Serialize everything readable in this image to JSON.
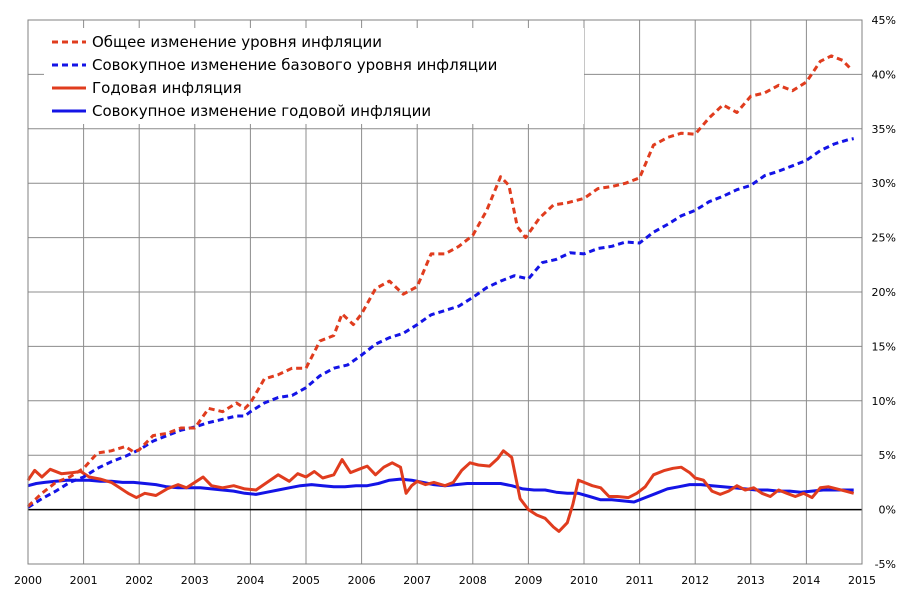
{
  "chart_data": {
    "type": "line",
    "title": "",
    "xlabel": "",
    "ylabel": "",
    "xlim": [
      2000,
      2015
    ],
    "ylim": [
      -5,
      45
    ],
    "grid": true,
    "legend_position": "top-left",
    "x_ticks": [
      "2000",
      "2001",
      "2002",
      "2003",
      "2004",
      "2005",
      "2006",
      "2007",
      "2008",
      "2009",
      "2010",
      "2011",
      "2012",
      "2013",
      "2014",
      "2015"
    ],
    "y_ticks": [
      "-5%",
      "0%",
      "5%",
      "10%",
      "15%",
      "20%",
      "25%",
      "30%",
      "35%",
      "40%",
      "45%"
    ],
    "series": [
      {
        "name": "Общее изменение уровня инфляции",
        "color": "#e03c1e",
        "style": "dashed",
        "points": [
          [
            2000.0,
            0.3
          ],
          [
            2000.25,
            1.5
          ],
          [
            2000.5,
            2.5
          ],
          [
            2000.75,
            3.0
          ],
          [
            2001.0,
            3.8
          ],
          [
            2001.25,
            5.2
          ],
          [
            2001.5,
            5.4
          ],
          [
            2001.75,
            5.8
          ],
          [
            2001.9,
            5.3
          ],
          [
            2002.0,
            5.5
          ],
          [
            2002.25,
            6.8
          ],
          [
            2002.5,
            7.0
          ],
          [
            2002.75,
            7.5
          ],
          [
            2003.0,
            7.5
          ],
          [
            2003.25,
            9.3
          ],
          [
            2003.5,
            9.0
          ],
          [
            2003.75,
            9.8
          ],
          [
            2003.9,
            9.3
          ],
          [
            2004.0,
            9.8
          ],
          [
            2004.25,
            12.0
          ],
          [
            2004.5,
            12.4
          ],
          [
            2004.75,
            13.0
          ],
          [
            2005.0,
            13.0
          ],
          [
            2005.25,
            15.5
          ],
          [
            2005.5,
            16.0
          ],
          [
            2005.65,
            18.0
          ],
          [
            2005.85,
            17.0
          ],
          [
            2006.0,
            18.0
          ],
          [
            2006.25,
            20.3
          ],
          [
            2006.5,
            21.0
          ],
          [
            2006.75,
            19.8
          ],
          [
            2007.0,
            20.5
          ],
          [
            2007.25,
            23.5
          ],
          [
            2007.5,
            23.5
          ],
          [
            2007.75,
            24.2
          ],
          [
            2008.0,
            25.2
          ],
          [
            2008.25,
            27.5
          ],
          [
            2008.5,
            30.6
          ],
          [
            2008.65,
            29.8
          ],
          [
            2008.8,
            26.0
          ],
          [
            2008.95,
            25.0
          ],
          [
            2009.2,
            26.8
          ],
          [
            2009.45,
            28.0
          ],
          [
            2009.7,
            28.2
          ],
          [
            2010.0,
            28.6
          ],
          [
            2010.25,
            29.5
          ],
          [
            2010.5,
            29.7
          ],
          [
            2010.75,
            30.0
          ],
          [
            2011.0,
            30.5
          ],
          [
            2011.25,
            33.5
          ],
          [
            2011.5,
            34.2
          ],
          [
            2011.75,
            34.6
          ],
          [
            2012.0,
            34.5
          ],
          [
            2012.25,
            36.0
          ],
          [
            2012.5,
            37.2
          ],
          [
            2012.75,
            36.5
          ],
          [
            2013.0,
            38.0
          ],
          [
            2013.25,
            38.3
          ],
          [
            2013.5,
            39.0
          ],
          [
            2013.75,
            38.5
          ],
          [
            2014.0,
            39.3
          ],
          [
            2014.25,
            41.2
          ],
          [
            2014.45,
            41.7
          ],
          [
            2014.65,
            41.3
          ],
          [
            2014.8,
            40.5
          ]
        ]
      },
      {
        "name": "Совокупное изменение базового уровня инфляции",
        "color": "#1414e6",
        "style": "dashed",
        "points": [
          [
            2000.0,
            0.2
          ],
          [
            2000.25,
            1.0
          ],
          [
            2000.5,
            1.7
          ],
          [
            2000.75,
            2.5
          ],
          [
            2001.0,
            3.0
          ],
          [
            2001.25,
            3.8
          ],
          [
            2001.5,
            4.4
          ],
          [
            2001.75,
            4.9
          ],
          [
            2002.0,
            5.5
          ],
          [
            2002.25,
            6.3
          ],
          [
            2002.5,
            6.8
          ],
          [
            2002.75,
            7.3
          ],
          [
            2003.0,
            7.6
          ],
          [
            2003.25,
            8.0
          ],
          [
            2003.5,
            8.3
          ],
          [
            2003.75,
            8.6
          ],
          [
            2003.9,
            8.6
          ],
          [
            2004.0,
            9.0
          ],
          [
            2004.25,
            9.8
          ],
          [
            2004.5,
            10.3
          ],
          [
            2004.75,
            10.5
          ],
          [
            2005.0,
            11.2
          ],
          [
            2005.25,
            12.3
          ],
          [
            2005.5,
            13.0
          ],
          [
            2005.75,
            13.3
          ],
          [
            2006.0,
            14.2
          ],
          [
            2006.25,
            15.2
          ],
          [
            2006.5,
            15.8
          ],
          [
            2006.75,
            16.2
          ],
          [
            2007.0,
            17.0
          ],
          [
            2007.25,
            17.9
          ],
          [
            2007.5,
            18.3
          ],
          [
            2007.75,
            18.7
          ],
          [
            2008.0,
            19.5
          ],
          [
            2008.25,
            20.4
          ],
          [
            2008.5,
            21.0
          ],
          [
            2008.75,
            21.5
          ],
          [
            2009.0,
            21.2
          ],
          [
            2009.25,
            22.7
          ],
          [
            2009.5,
            23.0
          ],
          [
            2009.75,
            23.6
          ],
          [
            2010.0,
            23.5
          ],
          [
            2010.25,
            24.0
          ],
          [
            2010.5,
            24.2
          ],
          [
            2010.75,
            24.6
          ],
          [
            2011.0,
            24.5
          ],
          [
            2011.25,
            25.5
          ],
          [
            2011.5,
            26.2
          ],
          [
            2011.75,
            27.0
          ],
          [
            2012.0,
            27.5
          ],
          [
            2012.25,
            28.3
          ],
          [
            2012.5,
            28.8
          ],
          [
            2012.75,
            29.4
          ],
          [
            2013.0,
            29.8
          ],
          [
            2013.25,
            30.7
          ],
          [
            2013.5,
            31.1
          ],
          [
            2013.75,
            31.6
          ],
          [
            2014.0,
            32.1
          ],
          [
            2014.25,
            33.0
          ],
          [
            2014.5,
            33.6
          ],
          [
            2014.75,
            34.0
          ],
          [
            2014.85,
            34.1
          ]
        ]
      },
      {
        "name": "Годовая инфляция",
        "color": "#e03c1e",
        "style": "solid",
        "points": [
          [
            2000.0,
            2.7
          ],
          [
            2000.12,
            3.6
          ],
          [
            2000.25,
            3.0
          ],
          [
            2000.4,
            3.7
          ],
          [
            2000.6,
            3.3
          ],
          [
            2000.8,
            3.4
          ],
          [
            2000.95,
            3.5
          ],
          [
            2001.1,
            3.0
          ],
          [
            2001.3,
            2.8
          ],
          [
            2001.5,
            2.5
          ],
          [
            2001.65,
            2.0
          ],
          [
            2001.8,
            1.5
          ],
          [
            2001.95,
            1.1
          ],
          [
            2002.1,
            1.5
          ],
          [
            2002.3,
            1.3
          ],
          [
            2002.5,
            1.9
          ],
          [
            2002.7,
            2.3
          ],
          [
            2002.85,
            2.0
          ],
          [
            2003.0,
            2.5
          ],
          [
            2003.15,
            3.0
          ],
          [
            2003.3,
            2.2
          ],
          [
            2003.5,
            2.0
          ],
          [
            2003.7,
            2.2
          ],
          [
            2003.9,
            1.9
          ],
          [
            2004.1,
            1.8
          ],
          [
            2004.3,
            2.5
          ],
          [
            2004.5,
            3.2
          ],
          [
            2004.7,
            2.6
          ],
          [
            2004.85,
            3.3
          ],
          [
            2005.0,
            3.0
          ],
          [
            2005.15,
            3.5
          ],
          [
            2005.3,
            2.9
          ],
          [
            2005.5,
            3.2
          ],
          [
            2005.65,
            4.6
          ],
          [
            2005.8,
            3.4
          ],
          [
            2005.95,
            3.7
          ],
          [
            2006.1,
            4.0
          ],
          [
            2006.25,
            3.2
          ],
          [
            2006.4,
            3.9
          ],
          [
            2006.55,
            4.3
          ],
          [
            2006.7,
            3.9
          ],
          [
            2006.8,
            1.5
          ],
          [
            2006.9,
            2.2
          ],
          [
            2007.0,
            2.6
          ],
          [
            2007.15,
            2.3
          ],
          [
            2007.3,
            2.5
          ],
          [
            2007.5,
            2.2
          ],
          [
            2007.65,
            2.5
          ],
          [
            2007.8,
            3.6
          ],
          [
            2007.95,
            4.3
          ],
          [
            2008.1,
            4.1
          ],
          [
            2008.3,
            4.0
          ],
          [
            2008.45,
            4.7
          ],
          [
            2008.55,
            5.4
          ],
          [
            2008.7,
            4.8
          ],
          [
            2008.85,
            1.0
          ],
          [
            2009.0,
            0.0
          ],
          [
            2009.15,
            -0.5
          ],
          [
            2009.3,
            -0.8
          ],
          [
            2009.45,
            -1.6
          ],
          [
            2009.55,
            -2.0
          ],
          [
            2009.7,
            -1.2
          ],
          [
            2009.8,
            0.5
          ],
          [
            2009.9,
            2.7
          ],
          [
            2010.0,
            2.5
          ],
          [
            2010.15,
            2.2
          ],
          [
            2010.3,
            2.0
          ],
          [
            2010.45,
            1.2
          ],
          [
            2010.6,
            1.2
          ],
          [
            2010.8,
            1.1
          ],
          [
            2010.95,
            1.5
          ],
          [
            2011.1,
            2.1
          ],
          [
            2011.25,
            3.2
          ],
          [
            2011.45,
            3.6
          ],
          [
            2011.6,
            3.8
          ],
          [
            2011.75,
            3.9
          ],
          [
            2011.9,
            3.4
          ],
          [
            2012.0,
            2.9
          ],
          [
            2012.15,
            2.7
          ],
          [
            2012.3,
            1.7
          ],
          [
            2012.45,
            1.4
          ],
          [
            2012.6,
            1.7
          ],
          [
            2012.75,
            2.2
          ],
          [
            2012.9,
            1.8
          ],
          [
            2013.05,
            2.0
          ],
          [
            2013.2,
            1.5
          ],
          [
            2013.35,
            1.2
          ],
          [
            2013.5,
            1.8
          ],
          [
            2013.65,
            1.5
          ],
          [
            2013.8,
            1.2
          ],
          [
            2013.95,
            1.5
          ],
          [
            2014.1,
            1.1
          ],
          [
            2014.25,
            2.0
          ],
          [
            2014.4,
            2.1
          ],
          [
            2014.55,
            1.9
          ],
          [
            2014.7,
            1.7
          ],
          [
            2014.85,
            1.5
          ]
        ]
      },
      {
        "name": "Совокупное изменение годовой инфляции",
        "color": "#1414e6",
        "style": "solid",
        "points": [
          [
            2000.0,
            2.2
          ],
          [
            2000.15,
            2.4
          ],
          [
            2000.3,
            2.5
          ],
          [
            2000.5,
            2.6
          ],
          [
            2000.7,
            2.7
          ],
          [
            2000.9,
            2.7
          ],
          [
            2001.1,
            2.7
          ],
          [
            2001.3,
            2.6
          ],
          [
            2001.5,
            2.6
          ],
          [
            2001.7,
            2.5
          ],
          [
            2001.9,
            2.5
          ],
          [
            2002.1,
            2.4
          ],
          [
            2002.3,
            2.3
          ],
          [
            2002.5,
            2.1
          ],
          [
            2002.7,
            2.0
          ],
          [
            2002.9,
            2.0
          ],
          [
            2003.1,
            2.0
          ],
          [
            2003.3,
            1.9
          ],
          [
            2003.5,
            1.8
          ],
          [
            2003.7,
            1.7
          ],
          [
            2003.9,
            1.5
          ],
          [
            2004.1,
            1.4
          ],
          [
            2004.3,
            1.6
          ],
          [
            2004.5,
            1.8
          ],
          [
            2004.7,
            2.0
          ],
          [
            2004.9,
            2.2
          ],
          [
            2005.1,
            2.3
          ],
          [
            2005.3,
            2.2
          ],
          [
            2005.5,
            2.1
          ],
          [
            2005.7,
            2.1
          ],
          [
            2005.9,
            2.2
          ],
          [
            2006.1,
            2.2
          ],
          [
            2006.3,
            2.4
          ],
          [
            2006.5,
            2.7
          ],
          [
            2006.7,
            2.8
          ],
          [
            2006.9,
            2.7
          ],
          [
            2007.1,
            2.5
          ],
          [
            2007.3,
            2.3
          ],
          [
            2007.5,
            2.2
          ],
          [
            2007.7,
            2.3
          ],
          [
            2007.9,
            2.4
          ],
          [
            2008.1,
            2.4
          ],
          [
            2008.3,
            2.4
          ],
          [
            2008.5,
            2.4
          ],
          [
            2008.7,
            2.2
          ],
          [
            2008.9,
            1.9
          ],
          [
            2009.1,
            1.8
          ],
          [
            2009.3,
            1.8
          ],
          [
            2009.5,
            1.6
          ],
          [
            2009.7,
            1.5
          ],
          [
            2009.9,
            1.5
          ],
          [
            2010.1,
            1.2
          ],
          [
            2010.3,
            0.9
          ],
          [
            2010.5,
            0.9
          ],
          [
            2010.7,
            0.8
          ],
          [
            2010.9,
            0.7
          ],
          [
            2011.1,
            1.1
          ],
          [
            2011.3,
            1.5
          ],
          [
            2011.5,
            1.9
          ],
          [
            2011.7,
            2.1
          ],
          [
            2011.9,
            2.3
          ],
          [
            2012.1,
            2.3
          ],
          [
            2012.3,
            2.2
          ],
          [
            2012.5,
            2.1
          ],
          [
            2012.7,
            2.0
          ],
          [
            2012.9,
            1.9
          ],
          [
            2013.1,
            1.8
          ],
          [
            2013.3,
            1.8
          ],
          [
            2013.5,
            1.7
          ],
          [
            2013.7,
            1.7
          ],
          [
            2013.9,
            1.6
          ],
          [
            2014.1,
            1.7
          ],
          [
            2014.3,
            1.8
          ],
          [
            2014.5,
            1.8
          ],
          [
            2014.7,
            1.8
          ],
          [
            2014.85,
            1.8
          ]
        ]
      }
    ]
  }
}
